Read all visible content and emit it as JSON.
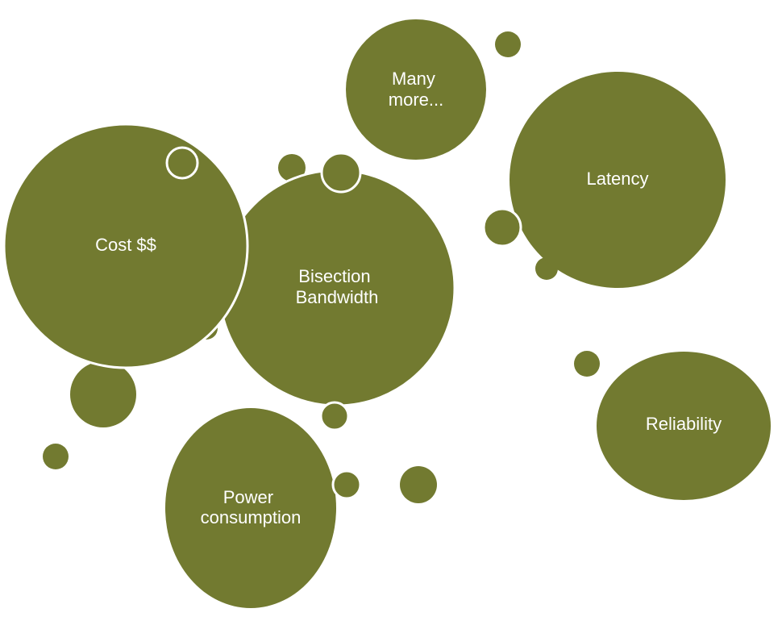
{
  "colors": {
    "bubble_fill": "#727a30",
    "bubble_stroke": "#ffffff",
    "background": "#ffffff"
  },
  "bubbles": {
    "many_more": [
      "Many",
      "more..."
    ],
    "latency": [
      "Latency"
    ],
    "cost": [
      "Cost $$"
    ],
    "bisection_bandwidth": [
      "Bisection",
      "Bandwidth"
    ],
    "reliability": [
      "Reliability"
    ],
    "power_consumption": [
      "Power",
      "consumption"
    ]
  }
}
